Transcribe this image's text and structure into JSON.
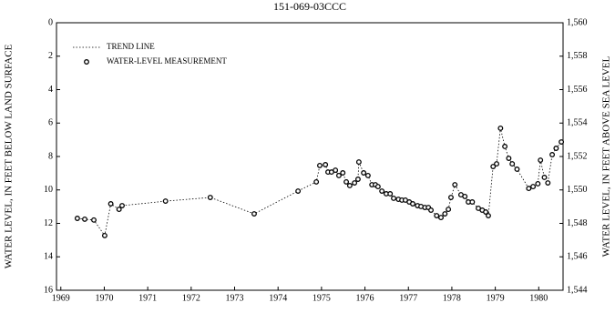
{
  "chart_data": {
    "type": "scatter",
    "title": "151-069-03CCC",
    "ylabel": "WATER LEVEL, IN FEET BELOW LAND SURFACE",
    "y2label": "WATER LEVEL, IN FEET ABOVE SEA LEVEL",
    "trend_line": {
      "name": "TREND LINE",
      "color": "#000000",
      "style": "dotted"
    },
    "series": [
      {
        "name": "WATER-LEVEL MEASUREMENT",
        "color": "#000000",
        "x": [
          1969.38,
          1969.55,
          1969.76,
          1970.01,
          1970.15,
          1970.34,
          1970.41,
          1971.41,
          1972.44,
          1973.45,
          1974.46,
          1974.88,
          1974.96,
          1975.09,
          1975.15,
          1975.23,
          1975.32,
          1975.4,
          1975.49,
          1975.57,
          1975.65,
          1975.76,
          1975.84,
          1975.86,
          1975.97,
          1976.07,
          1976.16,
          1976.24,
          1976.3,
          1976.39,
          1976.49,
          1976.58,
          1976.66,
          1976.77,
          1976.85,
          1976.93,
          1977.02,
          1977.1,
          1977.21,
          1977.29,
          1977.38,
          1977.46,
          1977.52,
          1977.65,
          1977.75,
          1977.84,
          1977.92,
          1977.98,
          1978.07,
          1978.21,
          1978.3,
          1978.38,
          1978.47,
          1978.61,
          1978.7,
          1978.78,
          1978.84,
          1978.95,
          1979.03,
          1979.12,
          1979.22,
          1979.31,
          1979.39,
          1979.5,
          1979.77,
          1979.87,
          1979.98,
          1980.04,
          1980.13,
          1980.21,
          1980.31,
          1980.4,
          1980.52
        ],
        "values": [
          11.7,
          11.75,
          11.8,
          12.73,
          10.83,
          11.16,
          10.94,
          10.67,
          10.45,
          11.43,
          10.07,
          9.52,
          8.54,
          8.49,
          8.93,
          8.93,
          8.82,
          9.14,
          8.98,
          9.52,
          9.74,
          9.58,
          9.36,
          8.33,
          8.98,
          9.14,
          9.69,
          9.69,
          9.8,
          10.07,
          10.23,
          10.23,
          10.5,
          10.56,
          10.61,
          10.61,
          10.72,
          10.83,
          10.94,
          10.99,
          11.05,
          11.05,
          11.21,
          11.54,
          11.65,
          11.43,
          11.16,
          10.45,
          9.69,
          10.29,
          10.39,
          10.72,
          10.72,
          11.1,
          11.21,
          11.32,
          11.54,
          8.6,
          8.44,
          6.31,
          7.4,
          8.11,
          8.44,
          8.76,
          9.91,
          9.8,
          9.63,
          8.22,
          9.25,
          9.58,
          7.89,
          7.51,
          7.13
        ]
      }
    ],
    "xlim": [
      1968.9,
      1980.56
    ],
    "xticks": [
      1969,
      1970,
      1971,
      1972,
      1973,
      1974,
      1975,
      1976,
      1977,
      1978,
      1979,
      1980
    ],
    "ylim": [
      0,
      16
    ],
    "y_inverted": true,
    "yticks": [
      0,
      2,
      4,
      6,
      8,
      10,
      12,
      14,
      16
    ],
    "y2lim": [
      1544,
      1560
    ],
    "y2ticks": [
      {
        "value": 1544,
        "label": "1,544"
      },
      {
        "value": 1546,
        "label": "1,546"
      },
      {
        "value": 1548,
        "label": "1,548"
      },
      {
        "value": 1550,
        "label": "1,550"
      },
      {
        "value": 1552,
        "label": "1,552"
      },
      {
        "value": 1554,
        "label": "1,554"
      },
      {
        "value": 1556,
        "label": "1,556"
      },
      {
        "value": 1558,
        "label": "1,558"
      },
      {
        "value": 1560,
        "label": "1,560"
      }
    ]
  }
}
